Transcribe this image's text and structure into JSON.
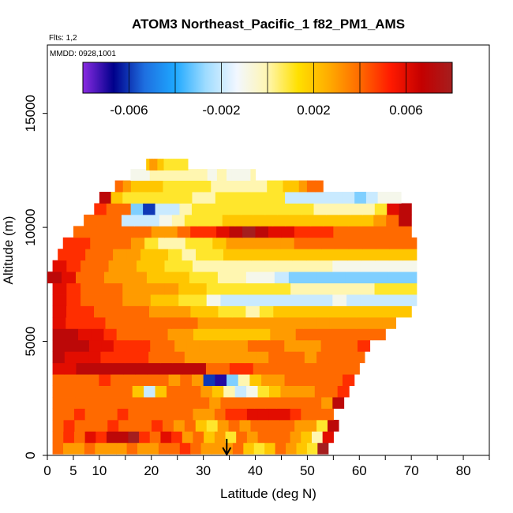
{
  "chart_data": {
    "type": "heatmap",
    "title": "ATOM3 Northeast_Pacific_1 f82_PM1_AMS",
    "flights_label": "Flts: 1,2",
    "mmdd_label": "MMDD: 0928,1001",
    "xlabel": "Latitude (deg N)",
    "ylabel": "Altitude (m)",
    "xlim": [
      0,
      85
    ],
    "ylim": [
      0,
      18000
    ],
    "x_ticks": [
      0,
      5,
      10,
      20,
      30,
      40,
      50,
      60,
      70,
      80
    ],
    "x_tick_labels": [
      "0",
      "5",
      "10",
      "20",
      "30",
      "40",
      "50",
      "60",
      "70",
      "80"
    ],
    "y_ticks": [
      0,
      5000,
      10000,
      15000
    ],
    "y_tick_labels": [
      "0",
      "5000",
      "10000",
      "15000"
    ],
    "colorbar": {
      "range": [
        -0.008,
        0.008
      ],
      "ticks": [
        -0.006,
        -0.002,
        0.002,
        0.006
      ],
      "tick_labels": [
        "-0.006",
        "-0.002",
        "0.002",
        "0.006"
      ],
      "colors": [
        "#8a2be2",
        "#00008b",
        "#1e6fe0",
        "#1ea8ff",
        "#9fdcff",
        "#f2f7ff",
        "#fff6b0",
        "#ffe000",
        "#ffab00",
        "#ff6a00",
        "#ff1a00",
        "#c40000",
        "#a51e1e"
      ]
    },
    "marker_latitude": 34.5,
    "bands": [
      {
        "alt": 300,
        "lat_min": 1,
        "lat_max": 54,
        "values": [
          0.004,
          0.003,
          0.003,
          0.004,
          0.003,
          0.003,
          0.003,
          0.004,
          0.003,
          0.003,
          0.004,
          0.004,
          0.005,
          0.004,
          0.003,
          0.003,
          0.003,
          0.004,
          0.002,
          0.001,
          0.002,
          0.004,
          0.003,
          0.002,
          0.001,
          0.008
        ]
      },
      {
        "alt": 800,
        "lat_min": 1,
        "lat_max": 55,
        "values": [
          0.004,
          0.005,
          0.004,
          0.006,
          0.005,
          0.007,
          0.007,
          0.008,
          0.005,
          0.004,
          0.006,
          0.005,
          0.003,
          0.004,
          0.002,
          0.003,
          0.001,
          0.004,
          0.003,
          0.004,
          0.004,
          0.004,
          0.003,
          0.002,
          0.0,
          0.006
        ]
      },
      {
        "alt": 1300,
        "lat_min": 1,
        "lat_max": 56,
        "values": [
          0.004,
          0.005,
          0.004,
          0.004,
          0.004,
          0.005,
          0.004,
          0.004,
          0.004,
          0.005,
          0.004,
          0.003,
          0.004,
          0.002,
          0.001,
          0.003,
          0.004,
          0.003,
          0.004,
          0.004,
          0.004,
          0.004,
          0.003,
          0.003,
          0.001,
          0.007
        ]
      },
      {
        "alt": 1800,
        "lat_min": 1,
        "lat_max": 55,
        "values": [
          0.004,
          0.004,
          0.005,
          0.004,
          0.004,
          0.004,
          0.005,
          0.004,
          0.004,
          0.004,
          0.004,
          0.004,
          0.004,
          0.003,
          0.003,
          0.004,
          0.005,
          0.005,
          0.006,
          0.006,
          0.006,
          0.006,
          0.005,
          0.004,
          0.004,
          0.004
        ]
      },
      {
        "alt": 2300,
        "lat_min": 1,
        "lat_max": 57,
        "values": [
          0.004,
          0.004,
          0.004,
          0.004,
          0.004,
          0.004,
          0.004,
          0.004,
          0.004,
          0.004,
          0.004,
          0.004,
          0.004,
          0.004,
          0.003,
          0.004,
          0.004,
          0.004,
          0.004,
          0.004,
          0.004,
          0.004,
          0.004,
          0.004,
          0.003,
          0.007
        ]
      },
      {
        "alt": 2800,
        "lat_min": 1,
        "lat_max": 58,
        "values": [
          0.004,
          0.004,
          0.004,
          0.004,
          0.004,
          0.004,
          0.004,
          0.002,
          -0.002,
          0.002,
          0.004,
          0.004,
          0.004,
          0.003,
          0.002,
          0.0,
          -0.002,
          -0.001,
          0.001,
          0.002,
          0.003,
          0.003,
          0.003,
          0.004,
          0.004,
          0.005
        ]
      },
      {
        "alt": 3300,
        "lat_min": 1,
        "lat_max": 59,
        "values": [
          0.004,
          0.004,
          0.004,
          0.004,
          0.005,
          0.004,
          0.004,
          0.004,
          0.004,
          0.004,
          0.003,
          0.004,
          0.003,
          -0.006,
          -0.007,
          -0.003,
          0.0,
          0.002,
          0.003,
          0.003,
          0.004,
          0.004,
          0.004,
          0.004,
          0.004,
          0.005
        ]
      },
      {
        "alt": 3800,
        "lat_min": 1,
        "lat_max": 60,
        "values": [
          0.006,
          0.006,
          0.007,
          0.007,
          0.007,
          0.007,
          0.007,
          0.007,
          0.007,
          0.007,
          0.007,
          0.007,
          0.007,
          0.004,
          0.004,
          0.005,
          0.005,
          0.004,
          0.004,
          0.004,
          0.004,
          0.004,
          0.004,
          0.004,
          0.004,
          0.004
        ]
      },
      {
        "alt": 4300,
        "lat_min": 1,
        "lat_max": 61,
        "values": [
          0.007,
          0.006,
          0.006,
          0.006,
          0.005,
          0.005,
          0.005,
          0.005,
          0.004,
          0.004,
          0.004,
          0.003,
          0.003,
          0.003,
          0.003,
          0.003,
          0.003,
          0.003,
          0.004,
          0.004,
          0.004,
          0.003,
          0.004,
          0.004,
          0.004,
          0.004
        ]
      },
      {
        "alt": 4800,
        "lat_min": 1,
        "lat_max": 62,
        "values": [
          0.007,
          0.007,
          0.007,
          0.006,
          0.006,
          0.005,
          0.005,
          0.005,
          0.004,
          0.004,
          0.003,
          0.003,
          0.003,
          0.003,
          0.003,
          0.003,
          0.004,
          0.004,
          0.004,
          0.003,
          0.003,
          0.003,
          0.004,
          0.004,
          0.004,
          0.005
        ]
      },
      {
        "alt": 5300,
        "lat_min": 1,
        "lat_max": 65,
        "values": [
          0.007,
          0.007,
          0.006,
          0.006,
          0.005,
          0.004,
          0.004,
          0.004,
          0.004,
          0.003,
          0.003,
          0.002,
          0.002,
          0.002,
          0.002,
          0.002,
          0.002,
          0.003,
          0.003,
          0.004,
          0.004,
          0.004,
          0.004,
          0.004,
          0.004,
          0.004
        ]
      },
      {
        "alt": 5800,
        "lat_min": 1,
        "lat_max": 67,
        "values": [
          0.006,
          0.005,
          0.005,
          0.005,
          0.004,
          0.004,
          0.004,
          0.004,
          0.004,
          0.004,
          0.004,
          0.003,
          0.003,
          0.003,
          0.003,
          0.003,
          0.003,
          0.003,
          0.003,
          0.003,
          0.003,
          0.003,
          0.003,
          0.003,
          0.003,
          0.003
        ]
      },
      {
        "alt": 6300,
        "lat_min": 1,
        "lat_max": 70,
        "values": [
          0.006,
          0.005,
          0.005,
          0.004,
          0.004,
          0.004,
          0.004,
          0.003,
          0.003,
          0.003,
          0.002,
          0.002,
          0.001,
          0.001,
          0.0,
          0.001,
          0.002,
          0.002,
          0.002,
          0.002,
          0.002,
          0.002,
          0.002,
          0.002,
          0.002,
          0.002
        ]
      },
      {
        "alt": 6800,
        "lat_min": 1,
        "lat_max": 71,
        "values": [
          0.006,
          0.005,
          0.004,
          0.004,
          0.004,
          0.003,
          0.003,
          0.002,
          0.002,
          0.001,
          0.001,
          -0.001,
          -0.002,
          -0.002,
          -0.002,
          -0.002,
          -0.002,
          -0.002,
          -0.002,
          -0.002,
          -0.001,
          -0.002,
          -0.002,
          -0.002,
          -0.002,
          -0.002
        ]
      },
      {
        "alt": 7300,
        "lat_min": 1,
        "lat_max": 71,
        "values": [
          0.006,
          0.005,
          0.004,
          0.004,
          0.004,
          0.003,
          0.003,
          0.003,
          0.003,
          0.002,
          0.002,
          0.001,
          0.001,
          0.001,
          0.001,
          0.001,
          0.001,
          0.0,
          0.0,
          0.0,
          0.0,
          0.0,
          0.0,
          0.001,
          0.001,
          0.001
        ]
      },
      {
        "alt": 7800,
        "lat_min": 0,
        "lat_max": 71,
        "values": [
          0.007,
          0.006,
          0.004,
          0.004,
          0.003,
          0.003,
          0.003,
          0.002,
          0.002,
          0.002,
          0.001,
          0.001,
          0.0,
          0.0,
          -0.001,
          -0.001,
          -0.002,
          -0.003,
          -0.003,
          -0.003,
          -0.003,
          -0.003,
          -0.003,
          -0.003,
          -0.003,
          -0.003
        ]
      },
      {
        "alt": 8300,
        "lat_min": 1,
        "lat_max": 71,
        "values": [
          0.006,
          0.005,
          0.004,
          0.004,
          0.003,
          0.003,
          0.002,
          0.002,
          0.001,
          0.001,
          0.0,
          0.0,
          0.0,
          0.0,
          0.0,
          0.0,
          0.0,
          0.0,
          0.0,
          0.0,
          -0.001,
          -0.001,
          -0.001,
          -0.001,
          -0.001,
          -0.001
        ]
      },
      {
        "alt": 8800,
        "lat_min": 2,
        "lat_max": 71,
        "values": [
          0.005,
          0.005,
          0.004,
          0.004,
          0.003,
          0.003,
          0.002,
          0.002,
          0.001,
          0.0,
          0.001,
          0.001,
          0.002,
          0.002,
          0.002,
          0.002,
          0.002,
          0.002,
          0.002,
          0.002,
          0.002,
          0.002,
          0.002,
          0.002,
          0.002,
          0.002
        ]
      },
      {
        "alt": 9300,
        "lat_min": 3,
        "lat_max": 71,
        "values": [
          0.005,
          0.005,
          0.004,
          0.004,
          0.004,
          0.003,
          0.001,
          0.0,
          0.0,
          0.001,
          0.001,
          0.002,
          0.003,
          0.003,
          0.003,
          0.003,
          0.003,
          0.004,
          0.004,
          0.004,
          0.004,
          0.004,
          0.004,
          0.004,
          0.004,
          0.004
        ]
      },
      {
        "alt": 9800,
        "lat_min": 5,
        "lat_max": 70,
        "values": [
          0.004,
          0.004,
          0.004,
          0.004,
          0.004,
          0.004,
          0.003,
          0.003,
          0.004,
          0.005,
          0.005,
          0.006,
          0.007,
          0.008,
          0.007,
          0.006,
          0.006,
          0.005,
          0.005,
          0.005,
          0.004,
          0.004,
          0.004,
          0.004,
          0.004,
          0.004
        ]
      },
      {
        "alt": 10300,
        "lat_min": 7,
        "lat_max": 70,
        "values": [
          0.004,
          0.004,
          0.004,
          -0.002,
          -0.002,
          -0.002,
          -0.001,
          0.0,
          0.001,
          0.001,
          0.001,
          0.002,
          0.002,
          0.002,
          0.002,
          0.002,
          0.002,
          0.002,
          0.002,
          0.002,
          0.002,
          0.002,
          0.002,
          0.003,
          0.004,
          0.007
        ]
      },
      {
        "alt": 10800,
        "lat_min": 9,
        "lat_max": 70,
        "values": [
          0.005,
          0.004,
          0.004,
          -0.003,
          -0.006,
          -0.002,
          -0.002,
          0.0,
          0.001,
          0.001,
          0.001,
          0.001,
          0.001,
          0.001,
          0.001,
          0.001,
          0.001,
          0.001,
          0.0,
          0.0,
          0.0,
          0.0,
          0.0,
          0.001,
          0.006,
          0.007
        ]
      },
      {
        "alt": 11300,
        "lat_min": 10,
        "lat_max": 68,
        "values": [
          0.007,
          0.002,
          0.001,
          0.001,
          0.001,
          0.001,
          0.001,
          0.001,
          0.0,
          0.0,
          0.001,
          0.001,
          0.001,
          0.001,
          0.001,
          0.001,
          -0.002,
          -0.002,
          -0.002,
          -0.002,
          -0.002,
          -0.002,
          -0.003,
          -0.002,
          -0.001,
          -0.001
        ]
      },
      {
        "alt": 11800,
        "lat_min": 13,
        "lat_max": 53,
        "values": [
          0.004,
          0.003,
          0.002,
          0.002,
          0.002,
          0.002,
          0.001,
          0.001,
          0.001,
          0.001,
          0.001,
          0.001,
          0.0,
          0.0,
          0.0,
          0.0,
          0.0,
          0.0,
          0.0,
          0.001,
          0.001,
          0.002,
          0.002,
          0.003,
          0.004,
          0.004
        ]
      },
      {
        "alt": 12300,
        "lat_min": 16,
        "lat_max": 40,
        "values": [
          -0.001,
          -0.001,
          -0.001,
          -0.001,
          0.0,
          0.0,
          0.0,
          0.0,
          0.0,
          0.0,
          0.0,
          0.0,
          0.0,
          0.0,
          0.0,
          0.0,
          -0.001,
          -0.001,
          0.0,
          0.0,
          -0.001,
          -0.001,
          -0.001,
          -0.001,
          -0.001,
          0.0
        ]
      },
      {
        "alt": 12750,
        "lat_min": 19,
        "lat_max": 27,
        "values": [
          0.002,
          0.002,
          0.003,
          0.003,
          0.003,
          0.003,
          0.003,
          0.002,
          0.002,
          0.002,
          0.002,
          0.001,
          0.001,
          0.001,
          0.001,
          0.001,
          0.001,
          0.001,
          0.001,
          0.001,
          0.001,
          0.001,
          0.001,
          0.001,
          0.001,
          0.001
        ]
      }
    ]
  }
}
